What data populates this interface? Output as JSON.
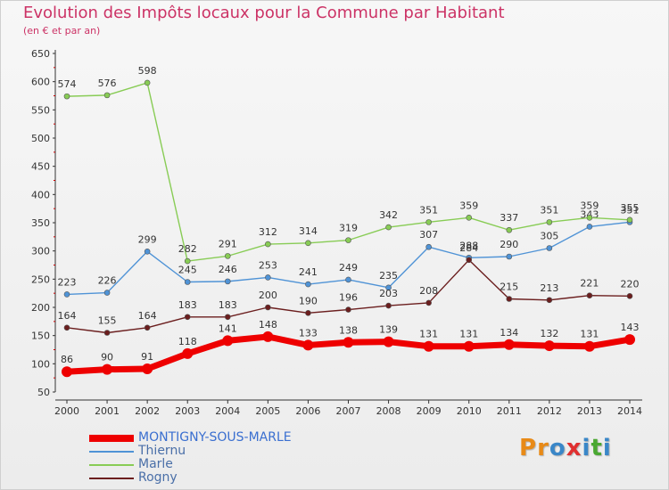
{
  "title": "Evolution des Impôts locaux pour la Commune par Habitant",
  "subtitle": "(en € et par an)",
  "logo": {
    "text": "Proxiti",
    "letters": [
      "P",
      "r",
      "o",
      "x",
      "i",
      "t",
      "i"
    ],
    "colors": [
      "#e88a17",
      "#e88a17",
      "#3a87c8",
      "#e03030",
      "#3a87c8",
      "#4aa832",
      "#3a87c8"
    ]
  },
  "chart_data": {
    "type": "line",
    "title": "Evolution des Impôts locaux pour la Commune par Habitant",
    "subtitle": "(en € et par an)",
    "x": [
      2000,
      2001,
      2002,
      2003,
      2004,
      2005,
      2006,
      2007,
      2008,
      2009,
      2010,
      2011,
      2012,
      2013,
      2014
    ],
    "ylim": [
      50,
      650
    ],
    "yticks": [
      50,
      100,
      150,
      200,
      250,
      300,
      350,
      400,
      450,
      500,
      550,
      600,
      650
    ],
    "grid": false,
    "legend_position": "bottom-left",
    "series": [
      {
        "name": "MONTIGNY-SOUS-MARLE",
        "color": "#ee0000",
        "emphasis": true,
        "values": [
          86,
          90,
          91,
          118,
          141,
          148,
          133,
          138,
          139,
          131,
          131,
          134,
          132,
          131,
          143
        ]
      },
      {
        "name": "Thiernu",
        "color": "#4f93d6",
        "emphasis": false,
        "values": [
          223,
          226,
          299,
          245,
          246,
          253,
          241,
          249,
          235,
          307,
          288,
          290,
          305,
          343,
          351
        ]
      },
      {
        "name": "Marle",
        "color": "#88cc55",
        "emphasis": false,
        "values": [
          574,
          576,
          598,
          282,
          291,
          312,
          314,
          319,
          342,
          351,
          359,
          337,
          351,
          359,
          355
        ]
      },
      {
        "name": "Rogny",
        "color": "#6b1e1e",
        "emphasis": false,
        "values": [
          164,
          155,
          164,
          183,
          183,
          200,
          190,
          196,
          203,
          208,
          284,
          215,
          213,
          221,
          220
        ]
      }
    ]
  }
}
